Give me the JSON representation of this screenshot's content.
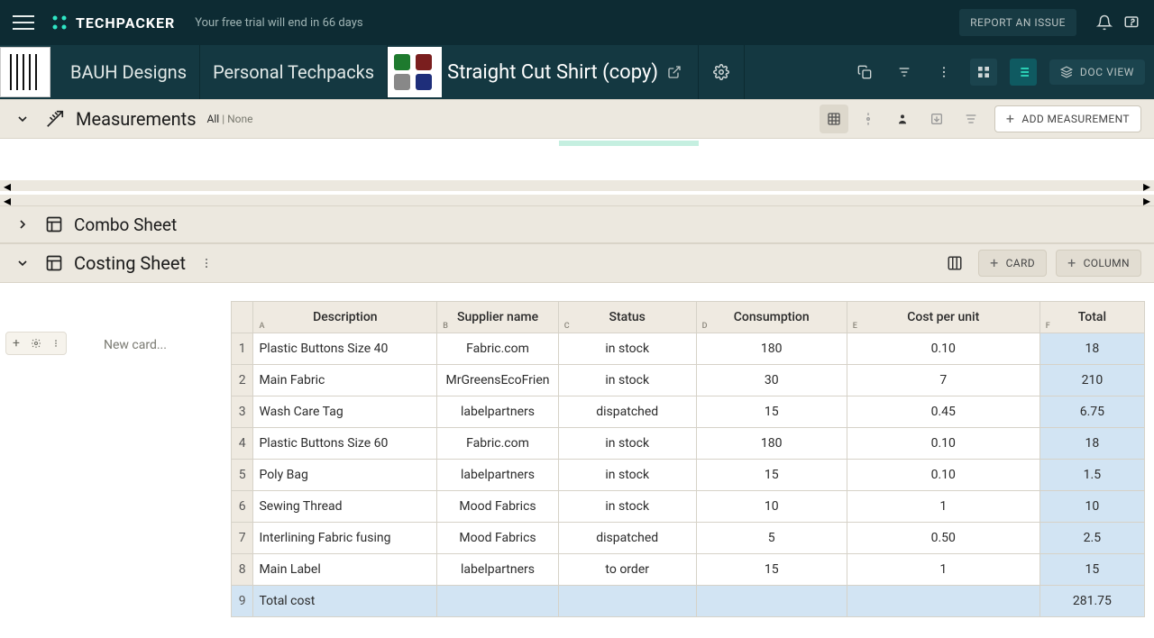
{
  "colors": {
    "topbar_bg": "#0d2b33",
    "secondbar_bg": "#143841",
    "section_bg": "#ece8df",
    "accent": "#2fe6c5",
    "total_highlight": "#d2e4f3",
    "text_dark": "#1a1a1a",
    "text_muted": "#9fb4b4",
    "border": "#d6d2c8"
  },
  "topbar": {
    "brand": "TECHPACKER",
    "trial_text": "Your free trial will end in 66 days",
    "report_btn": "REPORT AN ISSUE"
  },
  "secondbar": {
    "brand_name": "BAUH Designs",
    "collection": "Personal Techpacks",
    "techpack_title": "Straight Cut Shirt (copy)",
    "doc_view": "DOC VIEW"
  },
  "measurements": {
    "title": "Measurements",
    "filter_all": "All",
    "filter_sep": " | ",
    "filter_none": "None",
    "add_btn": "ADD MEASUREMENT"
  },
  "combo": {
    "title": "Combo Sheet"
  },
  "costing": {
    "title": "Costing Sheet",
    "card_btn": "CARD",
    "column_btn": "COLUMN",
    "new_card_placeholder": "New card...",
    "columns": [
      {
        "label": "Description",
        "letter": "A",
        "cls": "desc-col"
      },
      {
        "label": "Supplier name",
        "letter": "B",
        "cls": "sup-col"
      },
      {
        "label": "Status",
        "letter": "C",
        "cls": "status-col"
      },
      {
        "label": "Consumption",
        "letter": "D",
        "cls": "cons-col"
      },
      {
        "label": "Cost per unit",
        "letter": "E",
        "cls": "cost-col"
      },
      {
        "label": "Total",
        "letter": "F",
        "cls": "total-col"
      }
    ],
    "rows": [
      {
        "n": "1",
        "desc": "Plastic Buttons Size 40",
        "sup": "Fabric.com",
        "status": "in stock",
        "cons": "180",
        "cost": "0.10",
        "total": "18"
      },
      {
        "n": "2",
        "desc": "Main Fabric",
        "sup": "MrGreensEcoFrien",
        "status": "in stock",
        "cons": "30",
        "cost": "7",
        "total": "210"
      },
      {
        "n": "3",
        "desc": "Wash Care Tag",
        "sup": "labelpartners",
        "status": "dispatched",
        "cons": "15",
        "cost": "0.45",
        "total": "6.75"
      },
      {
        "n": "4",
        "desc": "Plastic Buttons Size 60",
        "sup": "Fabric.com",
        "status": "in stock",
        "cons": "180",
        "cost": "0.10",
        "total": "18"
      },
      {
        "n": "5",
        "desc": "Poly Bag",
        "sup": "labelpartners",
        "status": "in stock",
        "cons": "15",
        "cost": "0.10",
        "total": "1.5"
      },
      {
        "n": "6",
        "desc": "Sewing Thread",
        "sup": "Mood Fabrics",
        "status": "in stock",
        "cons": "10",
        "cost": "1",
        "total": "10"
      },
      {
        "n": "7",
        "desc": "Interlining Fabric fusing",
        "sup": "Mood Fabrics",
        "status": "dispatched",
        "cons": "5",
        "cost": "0.50",
        "total": "2.5"
      },
      {
        "n": "8",
        "desc": "Main Label",
        "sup": "labelpartners",
        "status": "to order",
        "cons": "15",
        "cost": "1",
        "total": "15"
      }
    ],
    "total_row": {
      "n": "9",
      "label": "Total cost",
      "value": "281.75"
    }
  }
}
